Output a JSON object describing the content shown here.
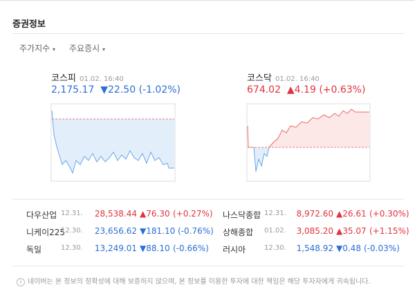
{
  "header": {
    "title": "증권정보"
  },
  "tabs": [
    "주가지수",
    "주요증시"
  ],
  "indices": [
    {
      "name": "코스피",
      "time": "01.02. 16:40",
      "value": "2,175.17",
      "change": "▼22.50",
      "rate": "(-1.02%)"
    },
    {
      "name": "코스닥",
      "time": "01.02. 16:40",
      "value": "674.02",
      "change": "▲4.19",
      "rate": "(+0.63%)"
    }
  ],
  "table": {
    "rows": [
      [
        "다우산업",
        "12.31.",
        "28,538.44",
        "▲76.30",
        "(+0.27%)"
      ],
      [
        "나스닥종합",
        "12.31.",
        "8,972.60",
        "▲26.61",
        "(+0.30%)"
      ],
      [
        "니케이225",
        "12.30.",
        "23,656.62",
        "▼181.10",
        "(-0.76%)"
      ],
      [
        "상해종합",
        "01.02.",
        "3,085.20",
        "▲35.07",
        "(+1.15%)"
      ],
      [
        "독일",
        "12.30.",
        "13,249.01",
        "▼88.10",
        "(-0.66%)"
      ],
      [
        "러시아",
        "12.30.",
        "1,548.92",
        "▼0.48",
        "(-0.03%)"
      ]
    ]
  },
  "notice": "네이버는 본 정보의 정확성에 대해 보증하지 않으며, 본 정보를 이용한 투자에 대한 책임은 해당 투자자에게 귀속됩니다."
}
